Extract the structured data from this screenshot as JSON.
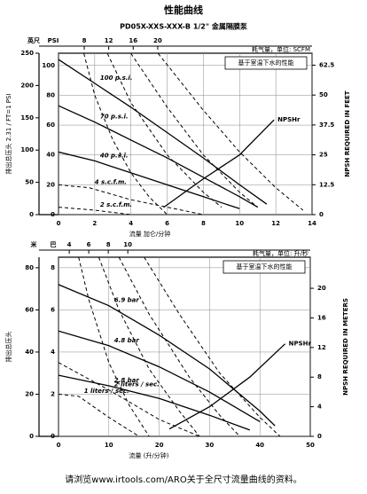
{
  "title": "性能曲线",
  "footer": "请浏览www.irtools.com/ARO关于全尺寸流量曲线的资料。",
  "chart_data": [
    {
      "type": "line",
      "subtitle": "PD05X-XXS-XXX-B  1/2\"  金属隔膜泵",
      "note": "基于室温下水的性能",
      "xlabel": "流量 加仑/分钟",
      "ylabel": "排出总压头 2.31 / FT=1 PSI",
      "y_unit": "PSI",
      "y2_unit": "英尺",
      "x2label": "耗气量，单位: SCFM",
      "y3label": "NPSH REQUIRED IN FEET",
      "xlim": [
        0,
        14
      ],
      "xticks": [
        0,
        2,
        4,
        6,
        8,
        10,
        12,
        14
      ],
      "ylim": [
        0,
        108.2
      ],
      "yticks": [
        0,
        20,
        40,
        60,
        80,
        100
      ],
      "y2lim": [
        0,
        250
      ],
      "y2ticks": [
        0,
        50,
        100,
        150,
        200,
        250
      ],
      "y3lim": [
        0,
        67.5
      ],
      "y3ticks": [
        0,
        12.5,
        25,
        37.5,
        50,
        62.5
      ],
      "x2lim": [
        3.8,
        45.2
      ],
      "x2ticks": [
        8,
        12,
        16,
        20
      ],
      "grid": true,
      "series": [
        {
          "name": "100 p.s.i.",
          "color": "#000",
          "dash": false,
          "x": [
            0,
            2,
            4,
            6,
            8,
            10,
            11.5
          ],
          "values": [
            104,
            88,
            72,
            55,
            38,
            20,
            7
          ]
        },
        {
          "name": "70 p.s.i.",
          "color": "#000",
          "dash": false,
          "x": [
            0,
            2,
            4,
            6,
            8,
            10,
            11
          ],
          "values": [
            73,
            62,
            50,
            38,
            25,
            12,
            5
          ]
        },
        {
          "name": "40 p.s.i.",
          "color": "#000",
          "dash": false,
          "x": [
            0,
            2,
            4,
            6,
            8,
            10
          ],
          "values": [
            42,
            36,
            28,
            20,
            12,
            4
          ]
        },
        {
          "name": "NPSHr",
          "color": "#000",
          "dash": false,
          "axis": "y3",
          "x": [
            5.8,
            8,
            10,
            11.9
          ],
          "values": [
            3,
            15,
            25,
            39.6
          ]
        },
        {
          "name": "4 s.c.f.m.",
          "color": "#000",
          "dash": true,
          "x": [
            0,
            1.7,
            4,
            6,
            8
          ],
          "values": [
            20,
            18,
            10,
            5,
            0
          ]
        },
        {
          "name": "2 s.c.f.m.",
          "color": "#000",
          "dash": true,
          "x": [
            0,
            2,
            4
          ],
          "values": [
            5,
            3,
            0
          ]
        },
        {
          "color": "#000",
          "dash": true,
          "x": [
            1.4,
            2,
            3,
            4,
            5,
            6
          ],
          "values": [
            108,
            80,
            50,
            28,
            12,
            0
          ]
        },
        {
          "color": "#000",
          "dash": true,
          "x": [
            2.7,
            4,
            6,
            8,
            9
          ],
          "values": [
            108,
            75,
            40,
            15,
            5
          ]
        },
        {
          "color": "#000",
          "dash": true,
          "x": [
            4,
            6,
            8,
            10,
            11
          ],
          "values": [
            108,
            72,
            40,
            15,
            5
          ]
        },
        {
          "color": "#000",
          "dash": true,
          "x": [
            5.5,
            8,
            10,
            12,
            13.5
          ],
          "values": [
            108,
            70,
            42,
            18,
            3
          ]
        }
      ]
    },
    {
      "type": "line",
      "note": "基于室温下水的性能",
      "xlabel": "流量 (升/分钟)",
      "ylabel": "排出总压头",
      "y_unit": "巴",
      "y2_unit": "米",
      "x2label": "耗气量，单位: 升/秒",
      "y3label": "NPSH REQUIRED IN METERS",
      "xlim": [
        0,
        50
      ],
      "xticks": [
        0,
        10,
        20,
        30,
        40,
        50
      ],
      "ylim": [
        0,
        8.5
      ],
      "yticks": [
        0,
        2,
        4,
        6,
        8
      ],
      "y2lim": [
        0,
        85
      ],
      "y2ticks": [
        0,
        20,
        40,
        60,
        80
      ],
      "y3lim": [
        0,
        24.2
      ],
      "y3ticks": [
        0,
        4,
        8,
        12,
        16,
        20
      ],
      "x2lim": [
        2.9,
        28.7
      ],
      "x2ticks": [
        4,
        6,
        8,
        10
      ],
      "grid": true,
      "series": [
        {
          "name": "6.9 bar",
          "color": "#000",
          "dash": false,
          "x": [
            0,
            10,
            20,
            30,
            40,
            43
          ],
          "values": [
            7.2,
            6.2,
            4.8,
            3.2,
            1.2,
            0.5
          ]
        },
        {
          "name": "4.8 bar",
          "color": "#000",
          "dash": false,
          "x": [
            0,
            10,
            20,
            30,
            40
          ],
          "values": [
            5,
            4.3,
            3.3,
            2.1,
            0.7
          ]
        },
        {
          "name": "2.8 bar",
          "color": "#000",
          "dash": false,
          "x": [
            0,
            10,
            20,
            30,
            38
          ],
          "values": [
            2.9,
            2.4,
            1.8,
            1,
            0.3
          ]
        },
        {
          "name": "NPSHr",
          "color": "#000",
          "dash": false,
          "axis": "y3",
          "x": [
            22,
            30,
            38,
            45
          ],
          "values": [
            1,
            4,
            8,
            12.5
          ]
        },
        {
          "name": "1 liters / sec.",
          "color": "#000",
          "dash": true,
          "x": [
            0,
            4,
            10,
            16
          ],
          "values": [
            2,
            1.9,
            0.9,
            0
          ]
        },
        {
          "name": "2 liters / sec.",
          "color": "#000",
          "dash": true,
          "x": [
            0,
            10,
            20,
            28
          ],
          "values": [
            3.5,
            2.2,
            0.8,
            0
          ]
        },
        {
          "color": "#000",
          "dash": true,
          "x": [
            4,
            6,
            10,
            14,
            18
          ],
          "values": [
            8.5,
            6.5,
            3.5,
            1.5,
            0
          ]
        },
        {
          "color": "#000",
          "dash": true,
          "x": [
            8,
            12,
            18,
            24,
            28
          ],
          "values": [
            8.5,
            6,
            3.2,
            1.2,
            0
          ]
        },
        {
          "color": "#000",
          "dash": true,
          "x": [
            12,
            18,
            26,
            32,
            36
          ],
          "values": [
            8.5,
            5.8,
            2.8,
            1,
            0
          ]
        },
        {
          "color": "#000",
          "dash": true,
          "x": [
            17,
            24,
            32,
            40,
            44
          ],
          "values": [
            8.5,
            5.8,
            3,
            0.9,
            0
          ]
        }
      ]
    }
  ]
}
